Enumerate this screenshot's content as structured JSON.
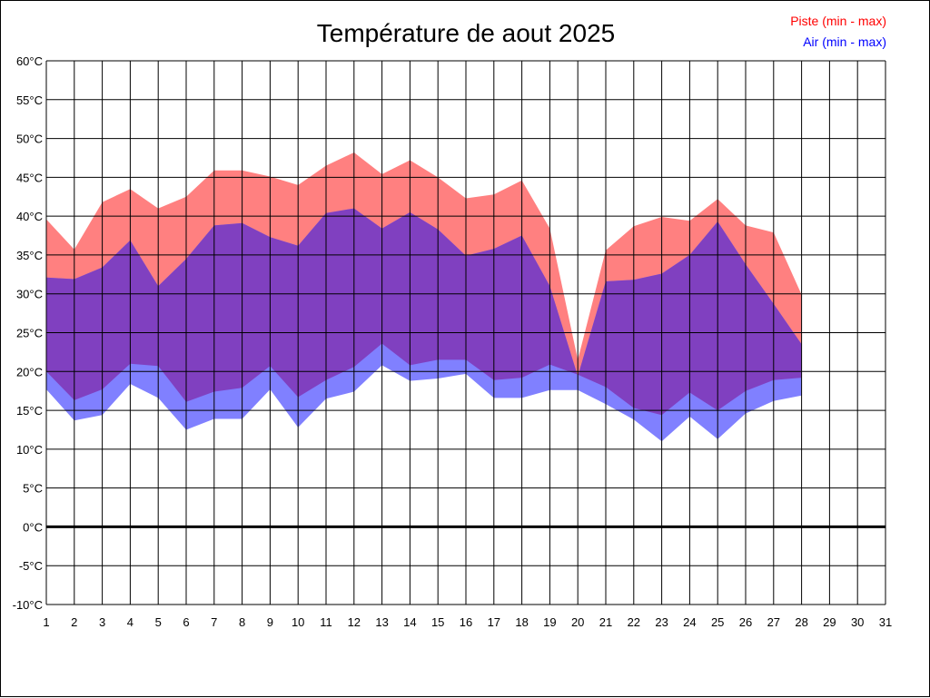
{
  "chart_data": {
    "type": "area",
    "title": "Température de aout 2025",
    "legend": [
      {
        "label": "Piste (min - max)",
        "color": "#ff0000"
      },
      {
        "label": "Air (min - max)",
        "color": "#0000ff"
      }
    ],
    "legend_placement": "top-right",
    "ylim": [
      -10,
      60
    ],
    "yticks": [
      "60°C",
      "55°C",
      "50°C",
      "45°C",
      "40°C",
      "35°C",
      "30°C",
      "25°C",
      "20°C",
      "15°C",
      "10°C",
      "5°C",
      "0°C",
      "-5°C",
      "-10°C"
    ],
    "ytick_values": [
      60,
      55,
      50,
      45,
      40,
      35,
      30,
      25,
      20,
      15,
      10,
      5,
      0,
      -5,
      -10
    ],
    "x": [
      1,
      2,
      3,
      4,
      5,
      6,
      7,
      8,
      9,
      10,
      11,
      12,
      13,
      14,
      15,
      16,
      17,
      18,
      19,
      20,
      21,
      22,
      23,
      24,
      25,
      26,
      27,
      28
    ],
    "xticks": [
      "1",
      "2",
      "3",
      "4",
      "5",
      "6",
      "7",
      "8",
      "9",
      "10",
      "11",
      "12",
      "13",
      "14",
      "15",
      "16",
      "17",
      "18",
      "19",
      "20",
      "21",
      "22",
      "23",
      "24",
      "25",
      "26",
      "27",
      "28",
      "29",
      "30",
      "31"
    ],
    "grid": true,
    "zero_line": true,
    "colors": {
      "piste": "#ff8080",
      "air": "#8080ff",
      "overlap": "#8040c0"
    },
    "series": [
      {
        "name": "Piste (min - max)",
        "min": [
          20.0,
          16.3,
          17.7,
          21.0,
          20.7,
          16.1,
          17.4,
          17.9,
          20.7,
          16.7,
          18.9,
          20.6,
          23.6,
          20.8,
          21.5,
          21.5,
          18.9,
          19.2,
          20.9,
          19.6,
          18.0,
          15.3,
          14.4,
          17.3,
          15.0,
          17.5,
          18.9,
          19.2
        ],
        "max": [
          39.6,
          35.7,
          41.8,
          43.5,
          41.0,
          42.5,
          45.9,
          45.9,
          45.1,
          44.0,
          46.5,
          48.2,
          45.4,
          47.2,
          45.0,
          42.3,
          42.8,
          44.6,
          38.4,
          21.5,
          35.6,
          38.7,
          39.9,
          39.4,
          42.2,
          38.8,
          37.9,
          29.9
        ]
      },
      {
        "name": "Air (min - max)",
        "min": [
          17.7,
          13.7,
          14.4,
          18.4,
          16.6,
          12.5,
          13.9,
          13.9,
          17.7,
          12.8,
          16.5,
          17.4,
          20.8,
          18.8,
          19.1,
          19.7,
          16.6,
          16.6,
          17.6,
          17.6,
          15.8,
          13.8,
          11.0,
          14.2,
          11.3,
          14.6,
          16.2,
          16.9
        ],
        "max": [
          32.1,
          31.9,
          33.4,
          36.9,
          31.0,
          34.5,
          38.8,
          39.1,
          37.3,
          36.2,
          40.4,
          41.0,
          38.4,
          40.5,
          38.3,
          34.9,
          35.8,
          37.5,
          31.0,
          19.4,
          31.6,
          31.8,
          32.6,
          35.0,
          39.3,
          33.8,
          28.7,
          23.5
        ]
      }
    ]
  }
}
